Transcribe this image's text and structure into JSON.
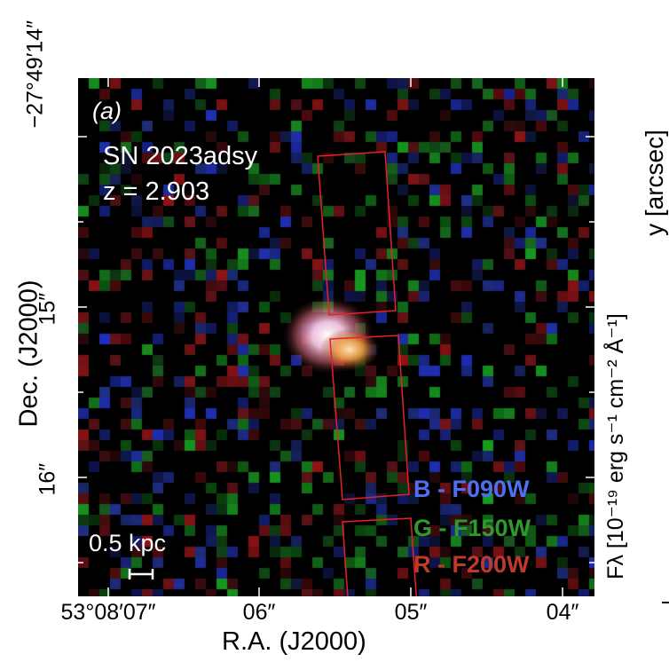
{
  "panel_label": "(a)",
  "object_name": "SN 2023adsy",
  "redshift_label": "z = 2.903",
  "scale_bar_label": "0.5 kpc",
  "legend": [
    {
      "channel": "B",
      "filter": "F090W",
      "color": "#4f6ff0"
    },
    {
      "channel": "G",
      "filter": "F150W",
      "color": "#2e9a2e"
    },
    {
      "channel": "R",
      "filter": "F200W",
      "color": "#c0392b"
    }
  ],
  "x_axis": {
    "label": "R.A. (J2000)",
    "ticks": [
      "53°08′07″",
      "06″",
      "05″",
      "04″"
    ]
  },
  "y_axis": {
    "label": "Dec. (J2000)",
    "ticks": [
      "−27°49′14″",
      "15″",
      "16″"
    ]
  },
  "right_partial": {
    "y_label": "y [arcsec]",
    "flux_label": "Fλ [10⁻¹⁹ erg s⁻¹ cm⁻² Å⁻¹]"
  },
  "slit_color": "#e8202a"
}
